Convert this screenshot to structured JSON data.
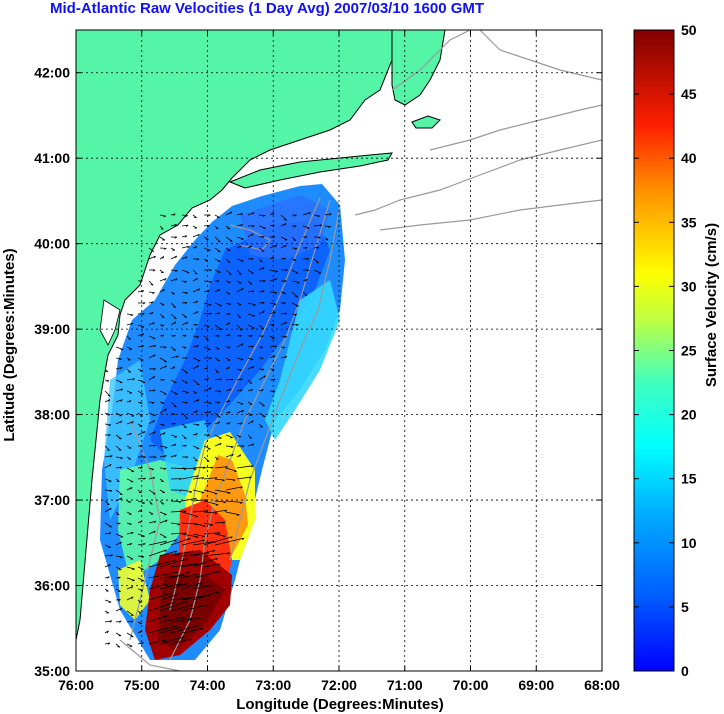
{
  "title": "Mid-Atlantic Raw Velocities (1 Day Avg) 2007/03/10 1600 GMT",
  "chart_data": {
    "type": "heatmap",
    "xlabel": "Longitude (Degrees:Minutes)",
    "ylabel": "Latitude (Degrees:Minutes)",
    "x_ticks": [
      "76:00",
      "75:00",
      "74:00",
      "73:00",
      "72:00",
      "71:00",
      "70:00",
      "69:00",
      "68:00"
    ],
    "y_ticks": [
      "35:00",
      "36:00",
      "37:00",
      "38:00",
      "39:00",
      "40:00",
      "41:00",
      "42:00"
    ],
    "xlim": [
      -76,
      -68
    ],
    "ylim": [
      35,
      42.5
    ],
    "grid": true,
    "colorbar": {
      "label": "Surface Velocity (cm/s)",
      "ticks": [
        "0",
        "5",
        "10",
        "15",
        "20",
        "25",
        "30",
        "35",
        "40",
        "45",
        "50"
      ],
      "range": [
        0,
        50
      ],
      "colormap": "jet"
    },
    "colors": {
      "land": "#55f5a8",
      "coastline": "#000000",
      "bathymetry": "#9a9a9a",
      "grid": "#000000",
      "title": "#1010ff"
    }
  }
}
